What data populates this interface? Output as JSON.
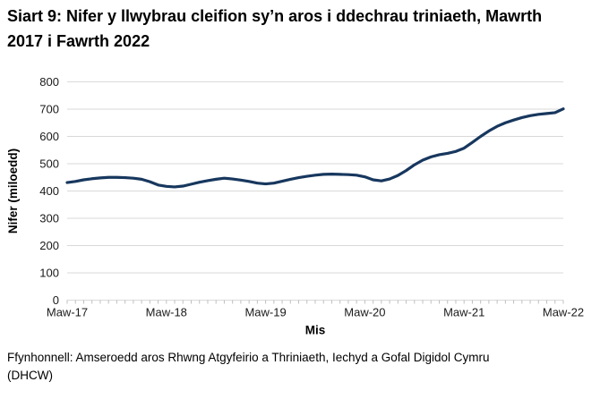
{
  "page": {
    "title": "Siart 9: Nifer y llwybrau cleifion sy’n aros i ddechrau triniaeth, Mawrth 2017 i Fawrth 2022",
    "source_line1": "Ffynhonnell: Amseroedd aros Rhwng Atgyfeirio a Thriniaeth, Iechyd a Gofal Digidol Cymru",
    "source_line2": "(DHCW)"
  },
  "chart_data": {
    "type": "line",
    "title": "Siart 9: Nifer y llwybrau cleifion sy’n aros i ddechrau triniaeth, Mawrth 2017 i Fawrth 2022",
    "xlabel": "Mis",
    "ylabel": "Nifer (miloedd)",
    "ylim": [
      0,
      800
    ],
    "ytick_step": 100,
    "ytick_labels": [
      "0",
      "100",
      "200",
      "300",
      "400",
      "500",
      "600",
      "700",
      "800"
    ],
    "xtick_labels": [
      "Maw-17",
      "Maw-18",
      "Maw-19",
      "Maw-20",
      "Maw-21",
      "Maw-22"
    ],
    "xtick_month_positions": [
      0,
      12,
      24,
      36,
      48,
      60
    ],
    "x_unit": "monthly, Mawrth 2017 i Fawrth 2022",
    "grid": "horizontal",
    "legend": "none",
    "line_color": "#17375e",
    "gridline_color": "#d9d9d9",
    "tick_color": "#bfbfbf",
    "series": [
      {
        "name": "Nifer y llwybrau cleifion sy’n aros i ddechrau triniaeth (miloedd)",
        "values": [
          431,
          435,
          441,
          445,
          448,
          450,
          450,
          449,
          447,
          443,
          434,
          422,
          417,
          415,
          418,
          425,
          432,
          438,
          443,
          447,
          444,
          440,
          435,
          429,
          426,
          429,
          436,
          443,
          449,
          454,
          458,
          461,
          462,
          461,
          460,
          458,
          452,
          441,
          437,
          444,
          457,
          475,
          496,
          513,
          525,
          533,
          538,
          545,
          557,
          578,
          600,
          620,
          637,
          650,
          660,
          669,
          676,
          681,
          684,
          687,
          701
        ]
      }
    ]
  }
}
